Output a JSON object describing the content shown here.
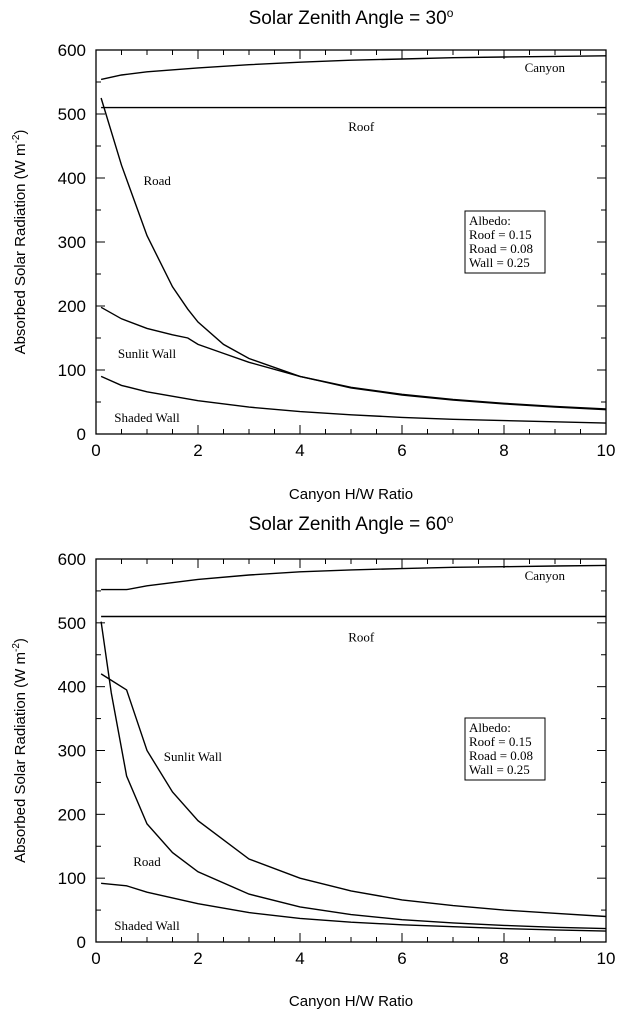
{
  "chart_data": [
    {
      "type": "line",
      "title": "Solar Zenith Angle = 30",
      "title_superscript": "o",
      "xlabel": "Canyon H/W Ratio",
      "ylabel": "Absorbed Solar Radiation (W m",
      "ylabel_superscript": "-2",
      "ylabel_suffix": ")",
      "xlim": [
        0,
        10
      ],
      "ylim": [
        0,
        600
      ],
      "xticks": [
        0,
        2,
        4,
        6,
        8,
        10
      ],
      "yticks": [
        0,
        100,
        200,
        300,
        400,
        500,
        600
      ],
      "grid": false,
      "legend": {
        "placement": "right",
        "lines": [
          "Albedo:",
          "Roof = 0.15",
          "Road = 0.08",
          "Wall = 0.25"
        ]
      },
      "series": [
        {
          "name": "Canyon",
          "x": [
            0.1,
            0.5,
            1,
            2,
            3,
            4,
            5,
            6,
            7,
            8,
            9,
            10
          ],
          "values": [
            554,
            561,
            566,
            572,
            577,
            581,
            584,
            586,
            588,
            589,
            590,
            591
          ]
        },
        {
          "name": "Roof",
          "x": [
            0.1,
            10
          ],
          "values": [
            510,
            510
          ]
        },
        {
          "name": "Road",
          "x": [
            0.1,
            0.5,
            1,
            1.5,
            1.8,
            2,
            2.5,
            3,
            4,
            5,
            6,
            7,
            8,
            9,
            10
          ],
          "values": [
            525,
            420,
            310,
            230,
            195,
            175,
            140,
            118,
            90,
            72,
            61,
            53,
            47,
            42,
            38
          ]
        },
        {
          "name": "Sunlit Wall",
          "x": [
            0.1,
            0.5,
            1,
            1.5,
            1.8,
            2,
            2.5,
            3,
            4,
            5,
            6,
            7,
            8,
            9,
            10
          ],
          "values": [
            198,
            180,
            165,
            155,
            150,
            140,
            126,
            112,
            90,
            73,
            62,
            54,
            48,
            43,
            39
          ]
        },
        {
          "name": "Shaded Wall",
          "x": [
            0.1,
            0.5,
            1,
            2,
            3,
            4,
            5,
            6,
            7,
            8,
            9,
            10
          ],
          "values": [
            90,
            76,
            66,
            52,
            42,
            35,
            30,
            26,
            23,
            21,
            19,
            17
          ]
        }
      ],
      "annotations": [
        {
          "text": "Canyon",
          "x": 8.8,
          "y": 572
        },
        {
          "text": "Roof",
          "x": 5.2,
          "y": 480
        },
        {
          "text": "Road",
          "x": 1.2,
          "y": 395
        },
        {
          "text": "Sunlit Wall",
          "x": 1.0,
          "y": 125
        },
        {
          "text": "Shaded Wall",
          "x": 1.0,
          "y": 25
        }
      ]
    },
    {
      "type": "line",
      "title": "Solar Zenith Angle = 60",
      "title_superscript": "o",
      "xlabel": "Canyon H/W Ratio",
      "ylabel": "Absorbed Solar Radiation (W m",
      "ylabel_superscript": "-2",
      "ylabel_suffix": ")",
      "xlim": [
        0,
        10
      ],
      "ylim": [
        0,
        600
      ],
      "xticks": [
        0,
        2,
        4,
        6,
        8,
        10
      ],
      "yticks": [
        0,
        100,
        200,
        300,
        400,
        500,
        600
      ],
      "grid": false,
      "legend": {
        "placement": "right",
        "lines": [
          "Albedo:",
          "Roof = 0.15",
          "Road = 0.08",
          "Wall = 0.25"
        ]
      },
      "series": [
        {
          "name": "Canyon",
          "x": [
            0.1,
            0.6,
            1,
            2,
            3,
            4,
            5,
            6,
            7,
            8,
            9,
            10
          ],
          "values": [
            552,
            552,
            558,
            568,
            575,
            580,
            583,
            585,
            587,
            588,
            589,
            590
          ]
        },
        {
          "name": "Roof",
          "x": [
            0.1,
            10
          ],
          "values": [
            510,
            510
          ]
        },
        {
          "name": "Sunlit Wall",
          "x": [
            0.1,
            0.6,
            1,
            1.5,
            2,
            3,
            4,
            5,
            6,
            7,
            8,
            9,
            10
          ],
          "values": [
            420,
            395,
            300,
            235,
            190,
            130,
            100,
            80,
            66,
            57,
            50,
            45,
            40
          ]
        },
        {
          "name": "Road",
          "x": [
            0.1,
            0.3,
            0.6,
            1,
            1.5,
            2,
            3,
            4,
            5,
            6,
            7,
            8,
            9,
            10
          ],
          "values": [
            502,
            390,
            260,
            185,
            140,
            110,
            75,
            55,
            43,
            35,
            30,
            26,
            23,
            21
          ]
        },
        {
          "name": "Shaded Wall",
          "x": [
            0.1,
            0.6,
            1,
            2,
            3,
            4,
            5,
            6,
            7,
            8,
            9,
            10
          ],
          "values": [
            92,
            88,
            78,
            60,
            46,
            37,
            31,
            27,
            24,
            21,
            19,
            17
          ]
        }
      ],
      "annotations": [
        {
          "text": "Canyon",
          "x": 8.8,
          "y": 573
        },
        {
          "text": "Roof",
          "x": 5.2,
          "y": 477
        },
        {
          "text": "Sunlit Wall",
          "x": 1.9,
          "y": 290
        },
        {
          "text": "Road",
          "x": 1.0,
          "y": 125
        },
        {
          "text": "Shaded Wall",
          "x": 1.0,
          "y": 25
        }
      ]
    }
  ]
}
